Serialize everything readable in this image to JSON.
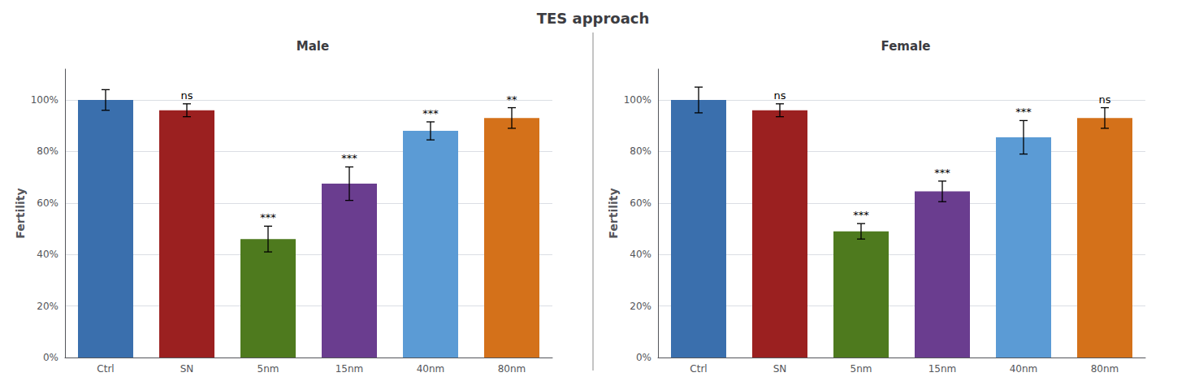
{
  "title": "TES approach",
  "chart_data": [
    {
      "type": "bar",
      "title": "Male",
      "ylabel": "Fertility",
      "categories": [
        "Ctrl",
        "SN",
        "5nm",
        "15nm",
        "40nm",
        "80nm"
      ],
      "values": [
        1.0,
        0.96,
        0.46,
        0.675,
        0.88,
        0.93
      ],
      "errors": [
        0.04,
        0.025,
        0.05,
        0.065,
        0.035,
        0.04
      ],
      "annotations": [
        null,
        "ns",
        "***",
        "***",
        "***",
        "**"
      ],
      "colors": [
        "#3A6FAD",
        "#9B2020",
        "#4E7A1E",
        "#6A3D8F",
        "#5B9BD5",
        "#D4711A"
      ],
      "ylim": [
        0,
        1.12
      ],
      "yticks": [
        {
          "value": 0,
          "label": "0%"
        },
        {
          "value": 0.2,
          "label": "20%"
        },
        {
          "value": 0.4,
          "label": "40%"
        },
        {
          "value": 0.6,
          "label": "60%"
        },
        {
          "value": 0.8,
          "label": "80%"
        },
        {
          "value": 1.0,
          "label": "100%"
        }
      ],
      "grid": true
    },
    {
      "type": "bar",
      "title": "Female",
      "ylabel": "Fertility",
      "categories": [
        "Ctrl",
        "SN",
        "5nm",
        "15nm",
        "40nm",
        "80nm"
      ],
      "values": [
        1.0,
        0.96,
        0.49,
        0.645,
        0.855,
        0.93
      ],
      "errors": [
        0.05,
        0.025,
        0.03,
        0.04,
        0.065,
        0.04
      ],
      "annotations": [
        null,
        "ns",
        "***",
        "***",
        "***",
        "ns"
      ],
      "colors": [
        "#3A6FAD",
        "#9B2020",
        "#4E7A1E",
        "#6A3D8F",
        "#5B9BD5",
        "#D4711A"
      ],
      "ylim": [
        0,
        1.12
      ],
      "yticks": [
        {
          "value": 0,
          "label": "0%"
        },
        {
          "value": 0.2,
          "label": "20%"
        },
        {
          "value": 0.4,
          "label": "40%"
        },
        {
          "value": 0.6,
          "label": "60%"
        },
        {
          "value": 0.8,
          "label": "80%"
        },
        {
          "value": 1.0,
          "label": "100%"
        }
      ],
      "grid": true
    }
  ]
}
